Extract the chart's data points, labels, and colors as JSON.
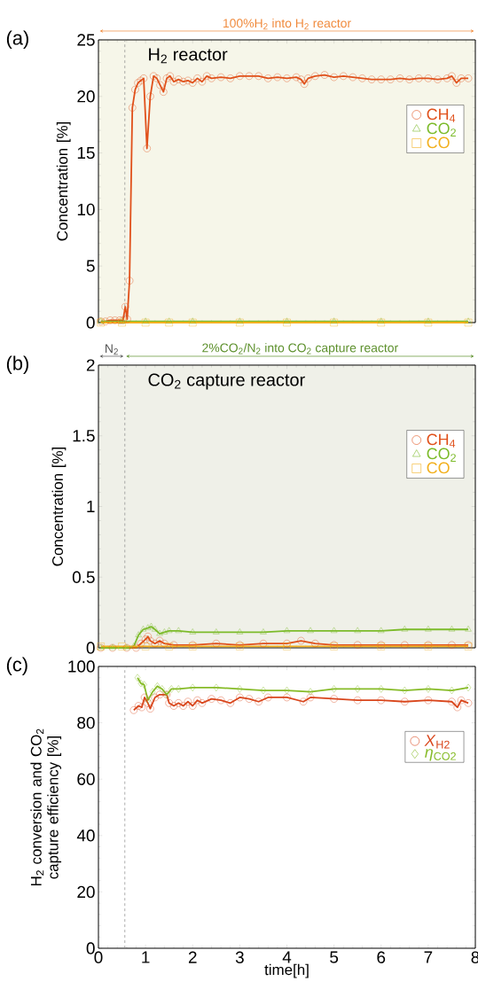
{
  "chart_data": [
    {
      "type": "line",
      "ylabel": "Concentration [%]",
      "xlim": [
        0,
        8
      ],
      "ylim": [
        0,
        25
      ],
      "xticks": [
        0,
        1,
        2,
        3,
        4,
        5,
        6,
        7,
        8
      ],
      "yticks": [
        0,
        5,
        10,
        15,
        20,
        25
      ],
      "tick_labels": "y",
      "legend": "right",
      "line_style": "solid",
      "grid": false,
      "annotations": [
        "(a)",
        "H$_{2}$ reactor",
        "100%H$_{2}$ into H$_{2}$ reactor"
      ],
      "ref_lines": [
        {
          "axis": "x",
          "value": 0.56,
          "color": "#888888",
          "line_style": "dashed"
        }
      ],
      "series": [
        {
          "name": "CH$_{4}$",
          "color": "#e0501a",
          "marker": "circle",
          "x": [
            0.05,
            0.15,
            0.25,
            0.35,
            0.45,
            0.52,
            0.57,
            0.61,
            0.66,
            0.72,
            0.78,
            0.84,
            0.9,
            0.96,
            1.03,
            1.1,
            1.17,
            1.24,
            1.31,
            1.38,
            1.45,
            1.52,
            1.6,
            1.7,
            1.8,
            1.9,
            2.0,
            2.1,
            2.2,
            2.3,
            2.4,
            2.6,
            2.8,
            3.0,
            3.2,
            3.4,
            3.6,
            3.8,
            4.0,
            4.2,
            4.3,
            4.37,
            4.45,
            4.6,
            4.8,
            5.0,
            5.2,
            5.4,
            5.6,
            5.8,
            6.0,
            6.2,
            6.4,
            6.6,
            6.8,
            7.0,
            7.2,
            7.4,
            7.5,
            7.6,
            7.7,
            7.85
          ],
          "values": [
            0.1,
            0.1,
            0.2,
            0.2,
            0.2,
            0.2,
            1.4,
            0.3,
            3.7,
            19.0,
            20.6,
            21.2,
            21.4,
            21.6,
            15.4,
            20.0,
            21.8,
            21.6,
            21.0,
            20.4,
            21.6,
            21.8,
            21.3,
            21.5,
            21.3,
            21.4,
            21.2,
            21.6,
            21.3,
            21.8,
            21.6,
            21.7,
            21.6,
            21.8,
            21.8,
            21.8,
            21.6,
            21.7,
            21.6,
            21.7,
            21.5,
            21.1,
            21.6,
            21.8,
            21.9,
            21.7,
            21.8,
            21.7,
            21.6,
            21.5,
            21.5,
            21.5,
            21.6,
            21.5,
            21.6,
            21.6,
            21.5,
            21.6,
            21.8,
            21.2,
            21.6,
            21.6
          ]
        },
        {
          "name": "CO$_{2}$",
          "color": "#7cbb2a",
          "marker": "triangle",
          "x": [
            0.05,
            0.5,
            1,
            1.5,
            2,
            3,
            4,
            5,
            6,
            7,
            7.85
          ],
          "values": [
            0.1,
            0.1,
            0.1,
            0.1,
            0.1,
            0.1,
            0.1,
            0.1,
            0.1,
            0.1,
            0.1
          ]
        },
        {
          "name": "CO",
          "color": "#f2b01e",
          "marker": "square",
          "x": [
            0.05,
            0.5,
            1,
            1.5,
            2,
            3,
            4,
            5,
            6,
            7,
            7.85
          ],
          "values": [
            0,
            0,
            0,
            0,
            0,
            0,
            0,
            0,
            0,
            0,
            0
          ]
        }
      ]
    },
    {
      "type": "line",
      "ylabel": "Concentration [%]",
      "xlim": [
        0,
        8
      ],
      "ylim": [
        0,
        2
      ],
      "xticks": [
        0,
        1,
        2,
        3,
        4,
        5,
        6,
        7,
        8
      ],
      "yticks": [
        0,
        0.5,
        1,
        1.5,
        2
      ],
      "tick_labels": "y",
      "legend": "right",
      "line_style": "solid",
      "grid": false,
      "annotations": [
        "(b)",
        "CO$_{2}$ capture reactor",
        "N$_{2}$",
        "2%CO$_{2}$/N$_{2}$ into CO$_{2}$ capture reactor"
      ],
      "ref_lines": [
        {
          "axis": "x",
          "value": 0.56,
          "color": "#888888",
          "line_style": "dashed"
        }
      ],
      "series": [
        {
          "name": "CH$_{4}$",
          "color": "#e0501a",
          "marker": "circle",
          "x": [
            0.05,
            0.3,
            0.6,
            0.8,
            0.9,
            1.0,
            1.05,
            1.1,
            1.2,
            1.3,
            1.4,
            1.6,
            2,
            2.5,
            3,
            3.5,
            4,
            4.3,
            4.6,
            5,
            5.5,
            6,
            6.5,
            7,
            7.5,
            7.85
          ],
          "values": [
            0,
            0,
            0,
            0,
            0.03,
            0.06,
            0.08,
            0.05,
            0.03,
            0.05,
            0.03,
            0.02,
            0.02,
            0.03,
            0.02,
            0.03,
            0.03,
            0.05,
            0.03,
            0.02,
            0.02,
            0.02,
            0.02,
            0.02,
            0.02,
            0.02
          ]
        },
        {
          "name": "CO$_{2}$",
          "color": "#7cbb2a",
          "marker": "triangle",
          "x": [
            0.05,
            0.3,
            0.6,
            0.75,
            0.85,
            0.95,
            1.05,
            1.12,
            1.2,
            1.3,
            1.4,
            1.5,
            1.7,
            2,
            2.5,
            3,
            3.5,
            4,
            4.5,
            5,
            5.5,
            6,
            6.5,
            7,
            7.5,
            7.85
          ],
          "values": [
            0,
            0,
            0,
            0.01,
            0.09,
            0.13,
            0.14,
            0.15,
            0.13,
            0.1,
            0.11,
            0.12,
            0.12,
            0.11,
            0.11,
            0.11,
            0.11,
            0.12,
            0.12,
            0.12,
            0.12,
            0.12,
            0.13,
            0.13,
            0.13,
            0.13
          ]
        },
        {
          "name": "CO",
          "color": "#f2b01e",
          "marker": "square",
          "x": [
            0.05,
            0.5,
            1,
            1.5,
            2,
            3,
            4,
            5,
            6,
            7,
            7.85
          ],
          "values": [
            0.01,
            0.01,
            0.01,
            0.01,
            0.01,
            0.01,
            0.01,
            0.01,
            0.01,
            0.01,
            0.01
          ]
        }
      ]
    },
    {
      "type": "line",
      "xlabel": "time[h]",
      "ylabel": "H$_{2}$ conversion and CO$_{2}$ capture efficiency [%]",
      "xlim": [
        0,
        8
      ],
      "ylim": [
        0,
        100
      ],
      "xticks": [
        0,
        1,
        2,
        3,
        4,
        5,
        6,
        7,
        8
      ],
      "yticks": [
        0,
        20,
        40,
        60,
        80,
        100
      ],
      "legend": "right",
      "line_style": "solid",
      "grid": false,
      "annotations": [
        "(c)"
      ],
      "ref_lines": [
        {
          "axis": "x",
          "value": 0.56,
          "color": "#888888",
          "line_style": "dashed"
        }
      ],
      "series": [
        {
          "name": "*X*$_{H2}$",
          "color": "#d9461c",
          "marker": "circle",
          "x": [
            0.75,
            0.85,
            0.92,
            0.98,
            1.05,
            1.1,
            1.2,
            1.3,
            1.45,
            1.5,
            1.6,
            1.7,
            1.8,
            1.9,
            2.0,
            2.1,
            2.2,
            2.4,
            2.6,
            2.8,
            3.0,
            3.2,
            3.4,
            3.6,
            4.0,
            4.35,
            4.5,
            5,
            5.5,
            6,
            6.5,
            7,
            7.5,
            7.62,
            7.7,
            7.85
          ],
          "values": [
            84.5,
            86,
            85.5,
            89,
            87,
            85,
            89,
            90,
            90,
            87,
            86,
            87,
            86,
            87.5,
            86,
            88,
            87,
            88.5,
            88,
            87,
            89,
            88.5,
            87.5,
            89,
            89,
            87.5,
            89,
            88.5,
            88,
            88,
            87.5,
            88,
            87.5,
            85.5,
            88,
            87
          ]
        },
        {
          "name": "*η*$_{CO2}$",
          "color": "#86bb27",
          "marker": "diamond",
          "x": [
            0.83,
            0.9,
            0.97,
            1.05,
            1.15,
            1.25,
            1.35,
            1.45,
            1.55,
            1.7,
            2,
            2.5,
            3,
            3.5,
            4,
            4.5,
            5,
            5.5,
            6,
            6.5,
            7,
            7.5,
            7.85
          ],
          "values": [
            96,
            94,
            93.5,
            88,
            91,
            93,
            92,
            90,
            92,
            92,
            92.5,
            92.5,
            92,
            91.5,
            91.5,
            91,
            92,
            92,
            92,
            91.5,
            92,
            91.5,
            92.5
          ]
        }
      ]
    }
  ]
}
